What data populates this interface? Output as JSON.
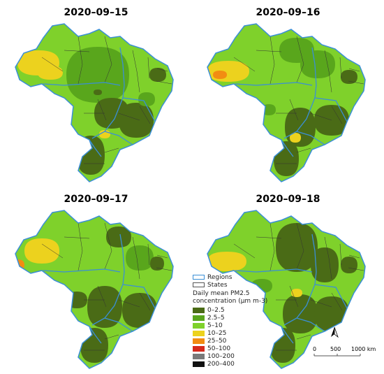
{
  "panels": [
    {
      "date": "2020–09–15"
    },
    {
      "date": "2020–09–16"
    },
    {
      "date": "2020–09–17"
    },
    {
      "date": "2020–09–18"
    }
  ],
  "legend": {
    "regions_label": "Regions",
    "states_label": "States",
    "title_line1": "Daily mean PM2.5",
    "title_line2": "concentration (μm m-3)",
    "region_border_color": "#3a8fd6",
    "state_border_color": "#555555",
    "classes": [
      {
        "label": "0–2.5",
        "color": "#4a6b16"
      },
      {
        "label": "2.5–5",
        "color": "#59a61c"
      },
      {
        "label": "5–10",
        "color": "#7fd12b"
      },
      {
        "label": "10–25",
        "color": "#ecd21e"
      },
      {
        "label": "25–50",
        "color": "#f28c12"
      },
      {
        "label": "50–100",
        "color": "#d62a1c"
      },
      {
        "label": "100–200",
        "color": "#7a7a7a"
      },
      {
        "label": "200–400",
        "color": "#111111"
      }
    ]
  },
  "scale_bar": {
    "label_0": "0",
    "label_mid": "500",
    "label_max": "1000 km",
    "north_label": "N"
  }
}
